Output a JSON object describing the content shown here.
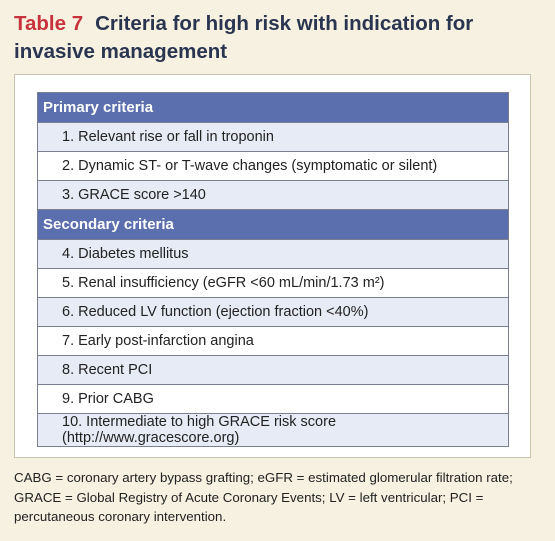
{
  "table": {
    "number": "Table 7",
    "title": "Criteria for high risk with indication for invasive management",
    "sections": [
      {
        "heading": "Primary criteria",
        "items": [
          "1. Relevant rise or fall in troponin",
          "2. Dynamic ST- or T-wave changes (symptomatic or silent)",
          "3. GRACE score >140"
        ]
      },
      {
        "heading": "Secondary criteria",
        "items": [
          "4. Diabetes mellitus",
          "5. Renal insufficiency (eGFR <60 mL/min/1.73 m²)",
          "6. Reduced LV function (ejection fraction <40%)",
          "7. Early post-infarction angina",
          "8. Recent PCI",
          "9. Prior CABG",
          "10. Intermediate to high GRACE risk score (http://www.gracescore.org)"
        ]
      }
    ],
    "footnote": "CABG = coronary artery bypass grafting; eGFR = estimated glomerular filtration rate; GRACE = Global Registry of Acute Coronary Events; LV = left ventricular; PCI = percutaneous coronary intervention."
  }
}
